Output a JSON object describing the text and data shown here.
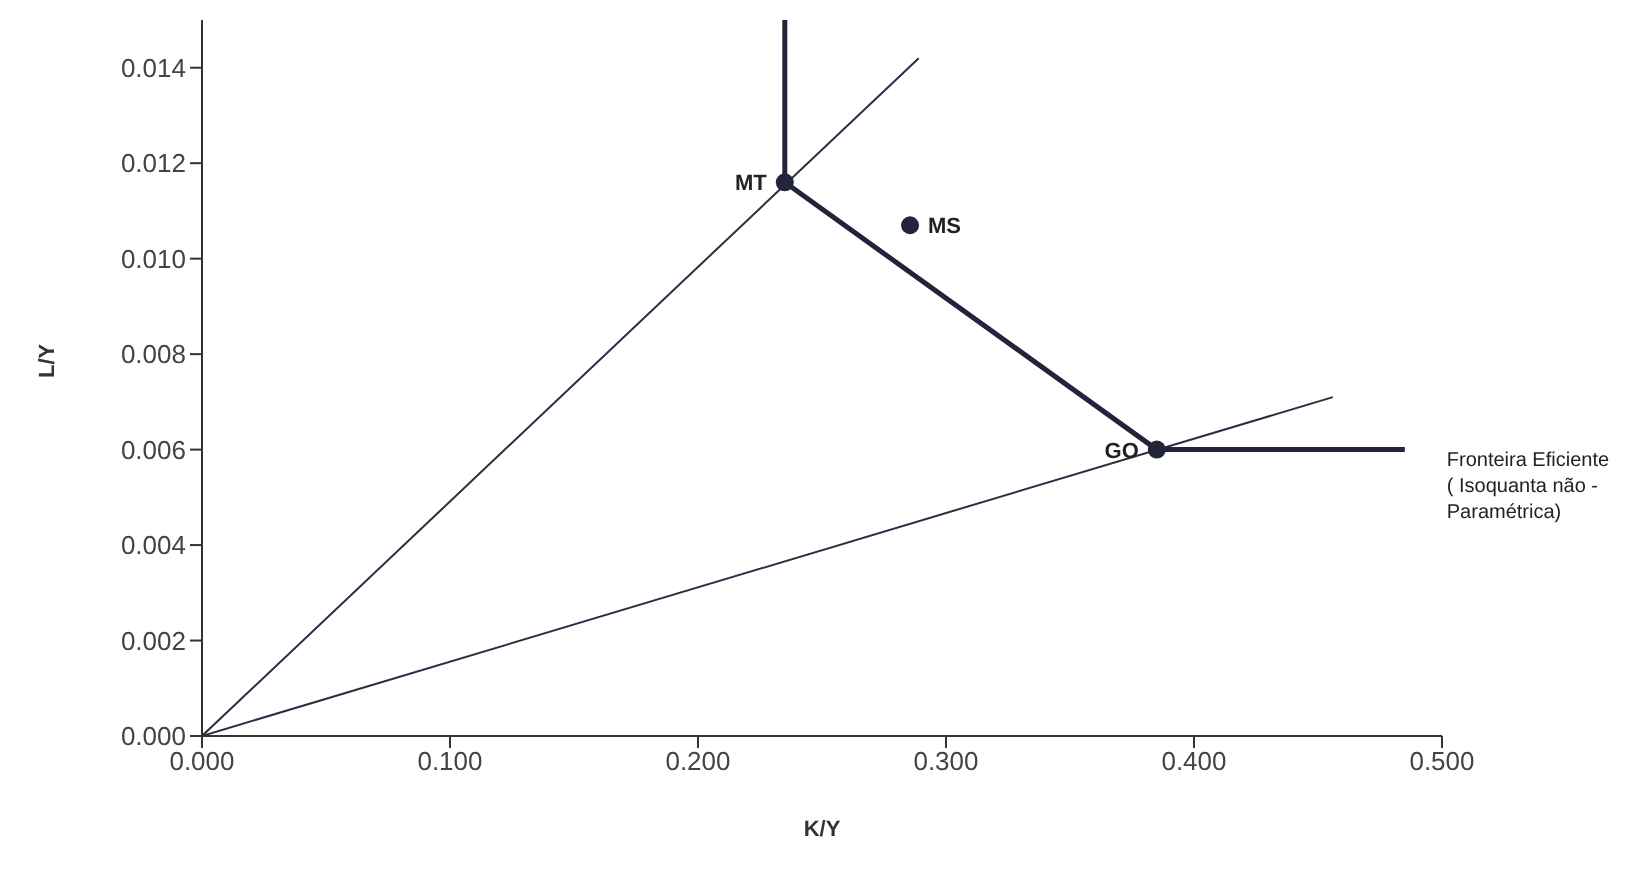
{
  "chart_data": {
    "type": "line",
    "xlabel": "K/Y",
    "ylabel": "L/Y",
    "xlim": [
      0,
      0.5
    ],
    "ylim": [
      0,
      0.015
    ],
    "xticks": [
      {
        "value": 0,
        "label": "0.000"
      },
      {
        "value": 0.1,
        "label": "0.100"
      },
      {
        "value": 0.2,
        "label": "0.200"
      },
      {
        "value": 0.3,
        "label": "0.300"
      },
      {
        "value": 0.4,
        "label": "0.400"
      },
      {
        "value": 0.5,
        "label": "0.500"
      }
    ],
    "yticks": [
      {
        "value": 0,
        "label": "0.000"
      },
      {
        "value": 0.002,
        "label": "0.002"
      },
      {
        "value": 0.004,
        "label": "0.004"
      },
      {
        "value": 0.006,
        "label": "0.006"
      },
      {
        "value": 0.008,
        "label": "0.008"
      },
      {
        "value": 0.01,
        "label": "0.010"
      },
      {
        "value": 0.012,
        "label": "0.012"
      },
      {
        "value": 0.014,
        "label": "0.014"
      }
    ],
    "grid": false,
    "marker": "none",
    "line_style": "solid",
    "series": [
      {
        "color": "#2b2d42",
        "x": [
          0,
          0.289
        ],
        "values": [
          0,
          0.0142
        ]
      },
      {
        "color": "#2b2d42",
        "x": [
          0,
          0.456
        ],
        "values": [
          0,
          0.0071
        ]
      },
      {
        "color": "#22243a",
        "x": [
          0.235,
          0.235,
          0.385,
          0.485
        ],
        "values": [
          0.015,
          0.0116,
          0.006,
          0.006
        ]
      },
      {
        "type": "scatter",
        "marker": "circle",
        "color": "#22243a",
        "x": [
          0.235,
          0.2855,
          0.385
        ],
        "values": [
          0.0116,
          0.0107,
          0.006
        ]
      }
    ],
    "annotations": [
      {
        "text": "MT",
        "x": 0.235,
        "y": 0.0116
      },
      {
        "text": "MS",
        "x": 0.2855,
        "y": 0.0107
      },
      {
        "text": "GO",
        "x": 0.385,
        "y": 0.006
      },
      {
        "text": "Fronteira Eficiente ( Isoquanta não - Paramétrica)",
        "x": 0.485,
        "y": 0.006
      }
    ]
  }
}
